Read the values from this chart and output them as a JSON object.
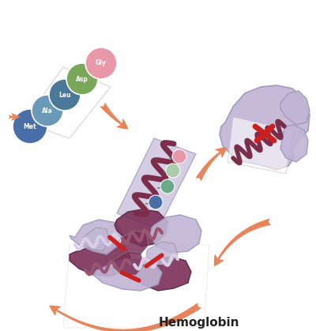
{
  "title": "Hemoglobin",
  "title_fontsize": 11,
  "title_fontweight": "bold",
  "bg_color": "#ffffff",
  "arrow_color": "#e8845a",
  "helix_dark": "#7b2d4a",
  "ribbon_light": "#c0b8d8",
  "ribbon_mid": "#a89cc0",
  "heme_red": "#cc2020",
  "aa_colors": {
    "Met": "#4a6fa8",
    "Ala": "#6a9ab8",
    "Leu": "#4a7898",
    "Asp": "#78a858",
    "Gly": "#e898a8"
  },
  "side_chain_colors": [
    "#4a6fa8",
    "#6aaa88",
    "#aacca8",
    "#e898a8"
  ],
  "fig_width": 4.0,
  "fig_height": 4.19
}
